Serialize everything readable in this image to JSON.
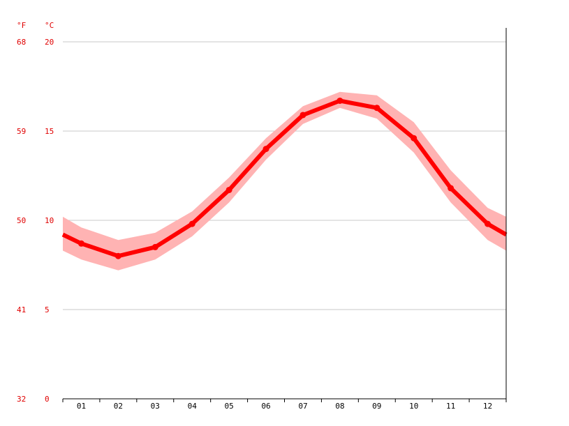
{
  "chart_data": {
    "type": "line",
    "categories": [
      "01",
      "02",
      "03",
      "04",
      "05",
      "06",
      "07",
      "08",
      "09",
      "10",
      "11",
      "12"
    ],
    "series": [
      {
        "values": [
          8.7,
          8.0,
          8.5,
          9.8,
          11.7,
          14.0,
          15.9,
          16.7,
          16.3,
          14.6,
          11.8,
          9.8
        ],
        "band_low": [
          7.8,
          7.2,
          7.8,
          9.1,
          11.0,
          13.4,
          15.4,
          16.3,
          15.7,
          13.8,
          11.0,
          8.9
        ],
        "band_high": [
          9.6,
          8.9,
          9.3,
          10.5,
          12.4,
          14.6,
          16.4,
          17.2,
          17.0,
          15.5,
          12.8,
          10.7
        ],
        "color": "#ff0000",
        "band_color": "#ffb3b3"
      }
    ],
    "edge_values": {
      "start": 9.2,
      "end": 9.2,
      "start_low": 8.3,
      "start_high": 10.2,
      "end_low": 8.3,
      "end_high": 10.2
    },
    "y_ticks_c": [
      "0",
      "5",
      "10",
      "15",
      "20"
    ],
    "y_ticks_f": [
      "32",
      "41",
      "50",
      "59",
      "68"
    ],
    "unit_f": "°F",
    "unit_c": "°C",
    "ylim": [
      0,
      20
    ],
    "grid": true
  }
}
